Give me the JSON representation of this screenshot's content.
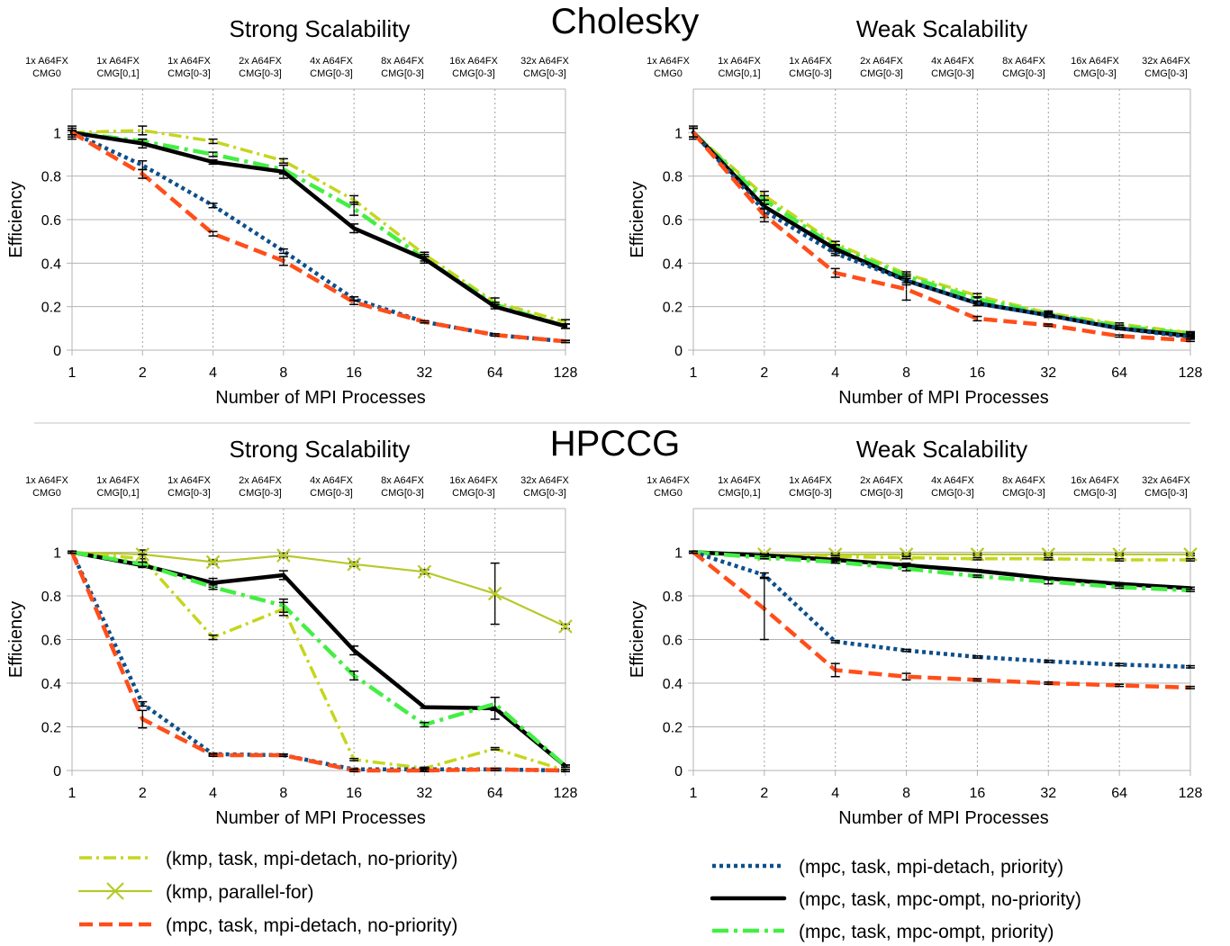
{
  "figure": {
    "group_titles": [
      "Cholesky",
      "HPCCG"
    ]
  },
  "colors": {
    "kmp_task": "#c5d61e",
    "kmp_pf": "#b7c92a",
    "mpc_detach_nopri": "#ff4e1a",
    "mpc_detach_pri": "#0d4f8b",
    "mpc_ompt_nopri": "#000000",
    "mpc_ompt_pri": "#44ee44",
    "grid": "#b3b3b3",
    "separator": "#d9d9d9"
  },
  "legend": [
    {
      "key": "kmp_task",
      "label": "(kmp, task, mpi-detach, no-priority)",
      "style": "dashdot",
      "marker": "none"
    },
    {
      "key": "kmp_pf",
      "label": "(kmp, parallel-for)",
      "style": "solid",
      "marker": "x"
    },
    {
      "key": "mpc_detach_nopri",
      "label": "(mpc, task, mpi-detach, no-priority)",
      "style": "dashed",
      "marker": "none"
    },
    {
      "key": "mpc_detach_pri",
      "label": "(mpc, task, mpi-detach, priority)",
      "style": "dotted",
      "marker": "none"
    },
    {
      "key": "mpc_ompt_nopri",
      "label": "(mpc, task, mpc-ompt, no-priority)",
      "style": "solid-thick",
      "marker": "none"
    },
    {
      "key": "mpc_ompt_pri",
      "label": "(mpc, task, mpc-ompt, priority)",
      "style": "dashdot-thick",
      "marker": "none"
    }
  ],
  "chart_data": [
    {
      "type": "line",
      "group": "Cholesky",
      "title": "Strong Scalability",
      "xlabel": "Number of MPI Processes",
      "ylabel": "Efficiency",
      "x": [
        "1",
        "2",
        "4",
        "8",
        "16",
        "32",
        "64",
        "128"
      ],
      "top_labels": [
        [
          "1x A64FX",
          "CMG0"
        ],
        [
          "1x A64FX",
          "CMG[0,1]"
        ],
        [
          "1x A64FX",
          "CMG[0-3]"
        ],
        [
          "2x A64FX",
          "CMG[0-3]"
        ],
        [
          "4x A64FX",
          "CMG[0-3]"
        ],
        [
          "8x A64FX",
          "CMG[0-3]"
        ],
        [
          "16x A64FX",
          "CMG[0-3]"
        ],
        [
          "32x A64FX",
          "CMG[0-3]"
        ]
      ],
      "ylim": [
        0,
        1.2
      ],
      "yticks": [
        "0",
        "0.2",
        "0.4",
        "0.6",
        "0.8",
        "1"
      ],
      "grid": true,
      "series": [
        {
          "key": "kmp_task",
          "name": "(kmp, task, mpi-detach, no-priority)",
          "values": [
            1.0,
            1.01,
            0.96,
            0.87,
            0.69,
            0.44,
            0.22,
            0.13
          ],
          "err": [
            0.01,
            0.02,
            0.01,
            0.01,
            0.02,
            0.01,
            0.02,
            0.01
          ]
        },
        {
          "key": "mpc_ompt_pri",
          "name": "(mpc, task, mpc-ompt, priority)",
          "values": [
            1.0,
            0.96,
            0.9,
            0.83,
            0.65,
            0.42,
            0.21,
            0.11
          ],
          "err": [
            0.02,
            0.01,
            0.01,
            0.02,
            0.03,
            0.01,
            0.01,
            0.01
          ]
        },
        {
          "key": "mpc_ompt_nopri",
          "name": "(mpc, task, mpc-ompt, no-priority)",
          "values": [
            1.0,
            0.95,
            0.865,
            0.82,
            0.56,
            0.42,
            0.2,
            0.11
          ],
          "err": [
            0.03,
            0.02,
            0.01,
            0.03,
            0.02,
            0.02,
            0.01,
            0.01
          ]
        },
        {
          "key": "mpc_detach_pri",
          "name": "(mpc, task, mpi-detach, priority)",
          "values": [
            1.0,
            0.85,
            0.665,
            0.455,
            0.235,
            0.13,
            0.07,
            0.04
          ],
          "err": [
            0.01,
            0.02,
            0.01,
            0.01,
            0.01,
            0.005,
            0.005,
            0.005
          ]
        },
        {
          "key": "mpc_detach_nopri",
          "name": "(mpc, task, mpi-detach, no-priority)",
          "values": [
            1.0,
            0.81,
            0.535,
            0.41,
            0.22,
            0.13,
            0.07,
            0.04
          ],
          "err": [
            0.01,
            0.02,
            0.01,
            0.02,
            0.01,
            0.005,
            0.005,
            0.005
          ]
        }
      ]
    },
    {
      "type": "line",
      "group": "Cholesky",
      "title": "Weak Scalability",
      "xlabel": "Number of MPI Processes",
      "ylabel": "Efficiency",
      "x": [
        "1",
        "2",
        "4",
        "8",
        "16",
        "32",
        "64",
        "128"
      ],
      "top_labels": [
        [
          "1x A64FX",
          "CMG0"
        ],
        [
          "1x A64FX",
          "CMG[0,1]"
        ],
        [
          "1x A64FX",
          "CMG[0-3]"
        ],
        [
          "2x A64FX",
          "CMG[0-3]"
        ],
        [
          "4x A64FX",
          "CMG[0-3]"
        ],
        [
          "8x A64FX",
          "CMG[0-3]"
        ],
        [
          "16x A64FX",
          "CMG[0-3]"
        ],
        [
          "32x A64FX",
          "CMG[0-3]"
        ]
      ],
      "ylim": [
        0,
        1.2
      ],
      "yticks": [
        "0",
        "0.2",
        "0.4",
        "0.6",
        "0.8",
        "1"
      ],
      "grid": true,
      "series": [
        {
          "key": "kmp_task",
          "name": "(kmp, task, mpi-detach, no-priority)",
          "values": [
            1.0,
            0.71,
            0.49,
            0.35,
            0.25,
            0.17,
            0.12,
            0.08
          ],
          "err": [
            0.02,
            0.02,
            0.01,
            0.01,
            0.01,
            0.01,
            0.005,
            0.005
          ]
        },
        {
          "key": "mpc_ompt_pri",
          "name": "(mpc, task, mpc-ompt, priority)",
          "values": [
            1.0,
            0.69,
            0.475,
            0.34,
            0.235,
            0.165,
            0.11,
            0.075
          ],
          "err": [
            0.02,
            0.02,
            0.01,
            0.01,
            0.01,
            0.01,
            0.005,
            0.005
          ]
        },
        {
          "key": "mpc_ompt_nopri",
          "name": "(mpc, task, mpc-ompt, no-priority)",
          "values": [
            1.0,
            0.66,
            0.465,
            0.32,
            0.215,
            0.16,
            0.1,
            0.065
          ],
          "err": [
            0.03,
            0.03,
            0.02,
            0.02,
            0.01,
            0.01,
            0.005,
            0.005
          ]
        },
        {
          "key": "mpc_detach_pri",
          "name": "(mpc, task, mpi-detach, priority)",
          "values": [
            1.0,
            0.64,
            0.445,
            0.32,
            0.215,
            0.16,
            0.1,
            0.06
          ],
          "err": [
            0.02,
            0.03,
            0.01,
            0.01,
            0.01,
            0.005,
            0.005,
            0.005
          ]
        },
        {
          "key": "mpc_detach_nopri",
          "name": "(mpc, task, mpi-detach, no-priority)",
          "values": [
            1.0,
            0.62,
            0.355,
            0.28,
            0.145,
            0.115,
            0.065,
            0.045
          ],
          "err": [
            0.02,
            0.03,
            0.02,
            0.05,
            0.01,
            0.005,
            0.005,
            0.005
          ]
        }
      ]
    },
    {
      "type": "line",
      "group": "HPCCG",
      "title": "Strong Scalability",
      "xlabel": "Number of MPI Processes",
      "ylabel": "Efficiency",
      "x": [
        "1",
        "2",
        "4",
        "8",
        "16",
        "32",
        "64",
        "128"
      ],
      "top_labels": [
        [
          "1x A64FX",
          "CMG0"
        ],
        [
          "1x A64FX",
          "CMG[0,1]"
        ],
        [
          "1x A64FX",
          "CMG[0-3]"
        ],
        [
          "2x A64FX",
          "CMG[0-3]"
        ],
        [
          "4x A64FX",
          "CMG[0-3]"
        ],
        [
          "8x A64FX",
          "CMG[0-3]"
        ],
        [
          "16x A64FX",
          "CMG[0-3]"
        ],
        [
          "32x A64FX",
          "CMG[0-3]"
        ]
      ],
      "ylim": [
        0,
        1.2
      ],
      "yticks": [
        "0",
        "0.2",
        "0.4",
        "0.6",
        "0.8",
        "1"
      ],
      "grid": true,
      "series": [
        {
          "key": "kmp_pf",
          "name": "(kmp, parallel-for)",
          "values": [
            1.0,
            0.99,
            0.955,
            0.985,
            0.945,
            0.91,
            0.81,
            0.66
          ],
          "err": [
            0.005,
            0.02,
            0.01,
            0.01,
            0.01,
            0.01,
            0.14,
            0.01
          ]
        },
        {
          "key": "kmp_task",
          "name": "(kmp, task, mpi-detach, no-priority)",
          "values": [
            1.0,
            0.97,
            0.61,
            0.74,
            0.05,
            0.01,
            0.1,
            0.0
          ],
          "err": [
            0.005,
            0.02,
            0.01,
            0.03,
            0.005,
            0.005,
            0.005,
            0.005
          ]
        },
        {
          "key": "mpc_ompt_nopri",
          "name": "(mpc, task, mpc-ompt, no-priority)",
          "values": [
            1.0,
            0.94,
            0.86,
            0.895,
            0.55,
            0.29,
            0.285,
            0.02
          ],
          "err": [
            0.005,
            0.01,
            0.02,
            0.02,
            0.02,
            0.005,
            0.05,
            0.005
          ]
        },
        {
          "key": "mpc_ompt_pri",
          "name": "(mpc, task, mpc-ompt, priority)",
          "values": [
            1.0,
            0.945,
            0.84,
            0.755,
            0.435,
            0.21,
            0.305,
            0.02
          ],
          "err": [
            0.005,
            0.01,
            0.01,
            0.03,
            0.02,
            0.01,
            0.03,
            0.005
          ]
        },
        {
          "key": "mpc_detach_pri",
          "name": "(mpc, task, mpi-detach, priority)",
          "values": [
            1.0,
            0.305,
            0.075,
            0.07,
            0.005,
            0.005,
            0.005,
            0.0
          ],
          "err": [
            0.005,
            0.01,
            0.005,
            0.005,
            0.005,
            0.005,
            0.005,
            0.005
          ]
        },
        {
          "key": "mpc_detach_nopri",
          "name": "(mpc, task, mpi-detach, no-priority)",
          "values": [
            1.0,
            0.235,
            0.07,
            0.07,
            0.0,
            0.0,
            0.005,
            0.0
          ],
          "err": [
            0.005,
            0.04,
            0.005,
            0.005,
            0.005,
            0.005,
            0.005,
            0.005
          ]
        }
      ]
    },
    {
      "type": "line",
      "group": "HPCCG",
      "title": "Weak Scalability",
      "xlabel": "Number of MPI Processes",
      "ylabel": "Efficiency",
      "x": [
        "1",
        "2",
        "4",
        "8",
        "16",
        "32",
        "64",
        "128"
      ],
      "top_labels": [
        [
          "1x A64FX",
          "CMG0"
        ],
        [
          "1x A64FX",
          "CMG[0,1]"
        ],
        [
          "1x A64FX",
          "CMG[0-3]"
        ],
        [
          "2x A64FX",
          "CMG[0-3]"
        ],
        [
          "4x A64FX",
          "CMG[0-3]"
        ],
        [
          "8x A64FX",
          "CMG[0-3]"
        ],
        [
          "16x A64FX",
          "CMG[0-3]"
        ],
        [
          "32x A64FX",
          "CMG[0-3]"
        ]
      ],
      "ylim": [
        0,
        1.2
      ],
      "yticks": [
        "0",
        "0.2",
        "0.4",
        "0.6",
        "0.8",
        "1"
      ],
      "grid": true,
      "series": [
        {
          "key": "kmp_pf",
          "name": "(kmp, parallel-for)",
          "values": [
            1.0,
            0.99,
            0.99,
            0.99,
            0.99,
            0.99,
            0.99,
            0.99
          ],
          "err": [
            0.005,
            0.005,
            0.005,
            0.005,
            0.005,
            0.005,
            0.005,
            0.005
          ]
        },
        {
          "key": "kmp_task",
          "name": "(kmp, task, mpi-detach, no-priority)",
          "values": [
            1.0,
            0.985,
            0.98,
            0.975,
            0.97,
            0.97,
            0.965,
            0.965
          ],
          "err": [
            0.005,
            0.005,
            0.005,
            0.005,
            0.005,
            0.005,
            0.005,
            0.005
          ]
        },
        {
          "key": "mpc_ompt_nopri",
          "name": "(mpc, task, mpc-ompt, no-priority)",
          "values": [
            1.0,
            0.985,
            0.965,
            0.94,
            0.915,
            0.88,
            0.855,
            0.835
          ],
          "err": [
            0.005,
            0.005,
            0.01,
            0.01,
            0.005,
            0.005,
            0.005,
            0.005
          ]
        },
        {
          "key": "mpc_ompt_pri",
          "name": "(mpc, task, mpc-ompt, priority)",
          "values": [
            1.0,
            0.975,
            0.955,
            0.925,
            0.89,
            0.865,
            0.84,
            0.825
          ],
          "err": [
            0.005,
            0.005,
            0.005,
            0.01,
            0.005,
            0.01,
            0.005,
            0.005
          ]
        },
        {
          "key": "mpc_detach_pri",
          "name": "(mpc, task, mpi-detach, priority)",
          "values": [
            1.0,
            0.895,
            0.59,
            0.55,
            0.52,
            0.5,
            0.485,
            0.475
          ],
          "err": [
            0.005,
            0.01,
            0.005,
            0.005,
            0.005,
            0.005,
            0.005,
            0.005
          ]
        },
        {
          "key": "mpc_detach_nopri",
          "name": "(mpc, task, mpi-detach, no-priority)",
          "values": [
            1.0,
            0.74,
            0.46,
            0.43,
            0.415,
            0.4,
            0.39,
            0.38
          ],
          "err": [
            0.005,
            0.14,
            0.03,
            0.015,
            0.005,
            0.005,
            0.005,
            0.005
          ]
        }
      ]
    }
  ]
}
